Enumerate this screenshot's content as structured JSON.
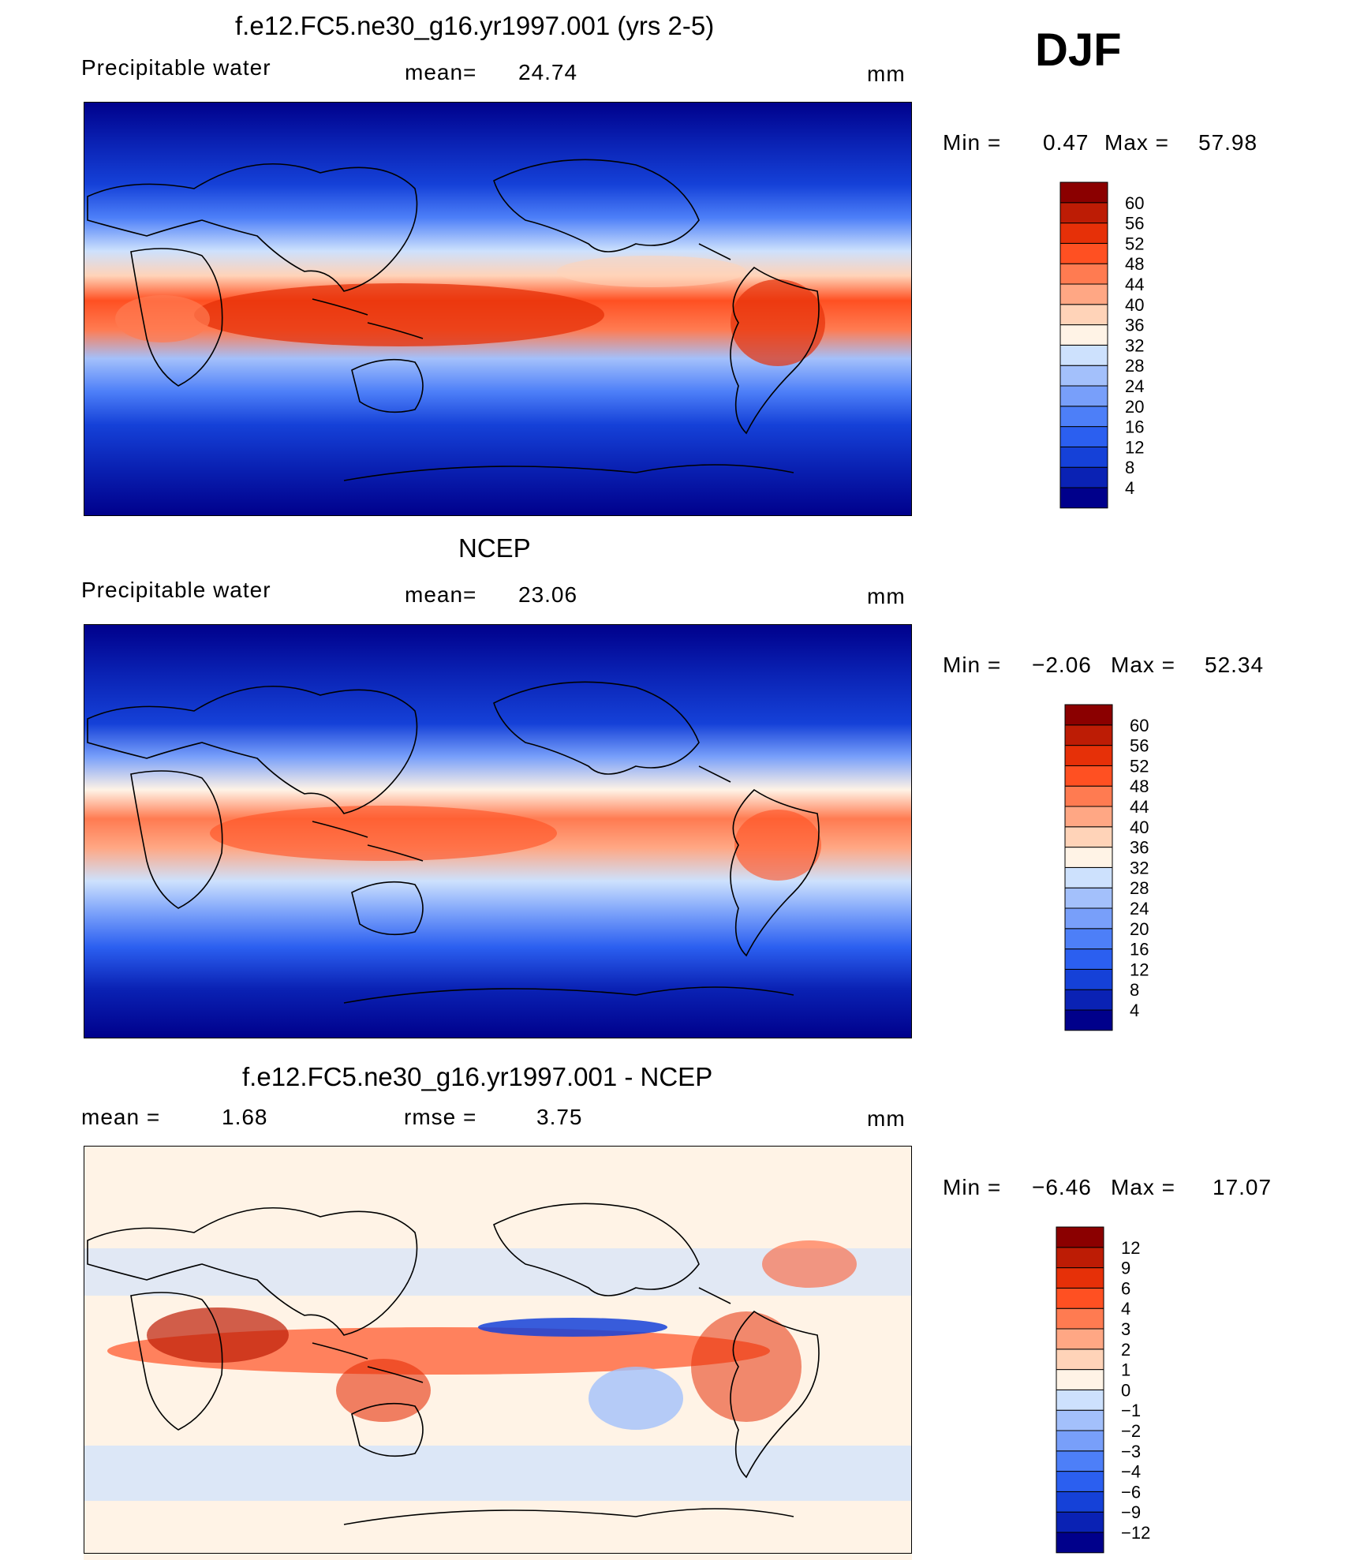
{
  "season": "DJF",
  "panels": [
    {
      "id": "model",
      "title": "f.e12.FC5.ne30_g16.yr1997.001 (yrs 2-5)",
      "left_label": "Precipitable  water",
      "center_label": "mean=",
      "center_value": "24.74",
      "units": "mm",
      "min_label": "Min  =",
      "min_value": "0.47",
      "max_label": "Max  =",
      "max_value": "57.98",
      "colorbar": {
        "colors": [
          "#00008b",
          "#0a22b4",
          "#1541d8",
          "#2b5ff0",
          "#4d7ff8",
          "#789ffa",
          "#a3c0fb",
          "#cde1fd",
          "#fff3e6",
          "#ffd3b8",
          "#ffa784",
          "#ff7b51",
          "#ff5022",
          "#e63008",
          "#bd1c05",
          "#8b0000"
        ],
        "labels": [
          "4",
          "8",
          "12",
          "16",
          "20",
          "24",
          "28",
          "32",
          "36",
          "40",
          "44",
          "48",
          "52",
          "56",
          "60"
        ]
      }
    },
    {
      "id": "obs",
      "title": "NCEP",
      "left_label": "Precipitable  water",
      "center_label": "mean=",
      "center_value": "23.06",
      "units": "mm",
      "min_label": "Min  =",
      "min_value": "−2.06",
      "max_label": "Max  =",
      "max_value": "52.34",
      "colorbar": {
        "colors": [
          "#00008b",
          "#0a22b4",
          "#1541d8",
          "#2b5ff0",
          "#4d7ff8",
          "#789ffa",
          "#a3c0fb",
          "#cde1fd",
          "#fff3e6",
          "#ffd3b8",
          "#ffa784",
          "#ff7b51",
          "#ff5022",
          "#e63008",
          "#bd1c05",
          "#8b0000"
        ],
        "labels": [
          "4",
          "8",
          "12",
          "16",
          "20",
          "24",
          "28",
          "32",
          "36",
          "40",
          "44",
          "48",
          "52",
          "56",
          "60"
        ]
      }
    },
    {
      "id": "diff",
      "title": "f.e12.FC5.ne30_g16.yr1997.001 - NCEP",
      "left_label": "mean  =",
      "left_value": "1.68",
      "center_label": "rmse  =",
      "center_value": "3.75",
      "units": "mm",
      "min_label": "Min  =",
      "min_value": "−6.46",
      "max_label": "Max  =",
      "max_value": "17.07",
      "colorbar": {
        "colors": [
          "#00008b",
          "#0a22b4",
          "#1541d8",
          "#2b5ff0",
          "#4d7ff8",
          "#789ffa",
          "#a3c0fb",
          "#cde1fd",
          "#fff3e6",
          "#ffd3b8",
          "#ffa784",
          "#ff7b51",
          "#ff5022",
          "#e63008",
          "#bd1c05",
          "#8b0000"
        ],
        "labels": [
          "−12",
          "−9",
          "−6",
          "−4",
          "−3",
          "−2",
          "−1",
          "0",
          "1",
          "2",
          "3",
          "4",
          "6",
          "9",
          "12"
        ]
      }
    }
  ]
}
